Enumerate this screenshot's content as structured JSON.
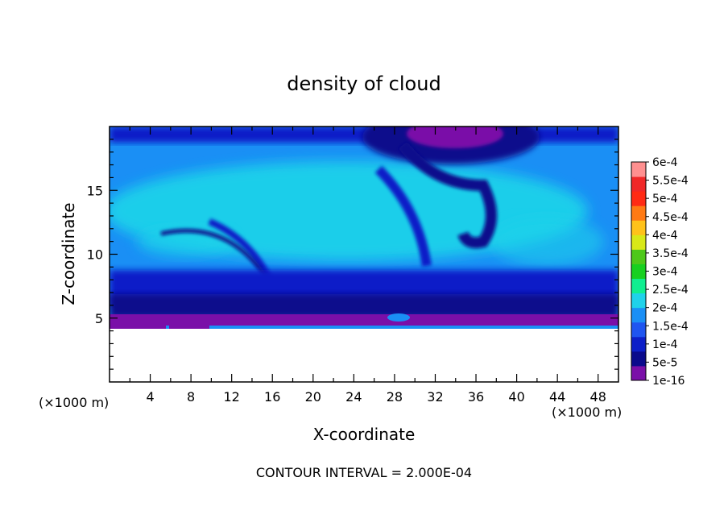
{
  "chart_data": {
    "type": "heatmap",
    "title": "density of cloud",
    "xlabel": "X-coordinate",
    "ylabel": "Z-coordinate",
    "x_unit": "(×1000 m)",
    "y_unit": "(×1000 m)",
    "xlim": [
      0,
      50
    ],
    "ylim": [
      0,
      20
    ],
    "x_ticks": [
      4,
      8,
      12,
      16,
      20,
      24,
      28,
      32,
      36,
      40,
      44,
      48
    ],
    "y_ticks": [
      5,
      10,
      15
    ],
    "footer": "CONTOUR INTERVAL = 2.000E-04",
    "colorbar": {
      "labels": [
        "1e-16",
        "5e-5",
        "1e-4",
        "1.5e-4",
        "2e-4",
        "2.5e-4",
        "3e-4",
        "3.5e-4",
        "4e-4",
        "4.5e-4",
        "5e-4",
        "5.5e-4",
        "6e-4"
      ],
      "colors": [
        "#7a0fa8",
        "#0a0a8c",
        "#0d1fc8",
        "#1f55f0",
        "#1a8ff5",
        "#1fd2ea",
        "#10ee90",
        "#18d020",
        "#4ec81a",
        "#d8e818",
        "#ffc21a",
        "#ff7a14",
        "#ff2a14",
        "#f02828",
        "#ff9090"
      ]
    },
    "field_description": "cloud density field: low (purple/dark blue) near z=4-5 and top boundary, moderate (light blue/cyan ~1.5e-4 to 2e-4) in mid-levels 8-17; zero (white) below z~4"
  }
}
